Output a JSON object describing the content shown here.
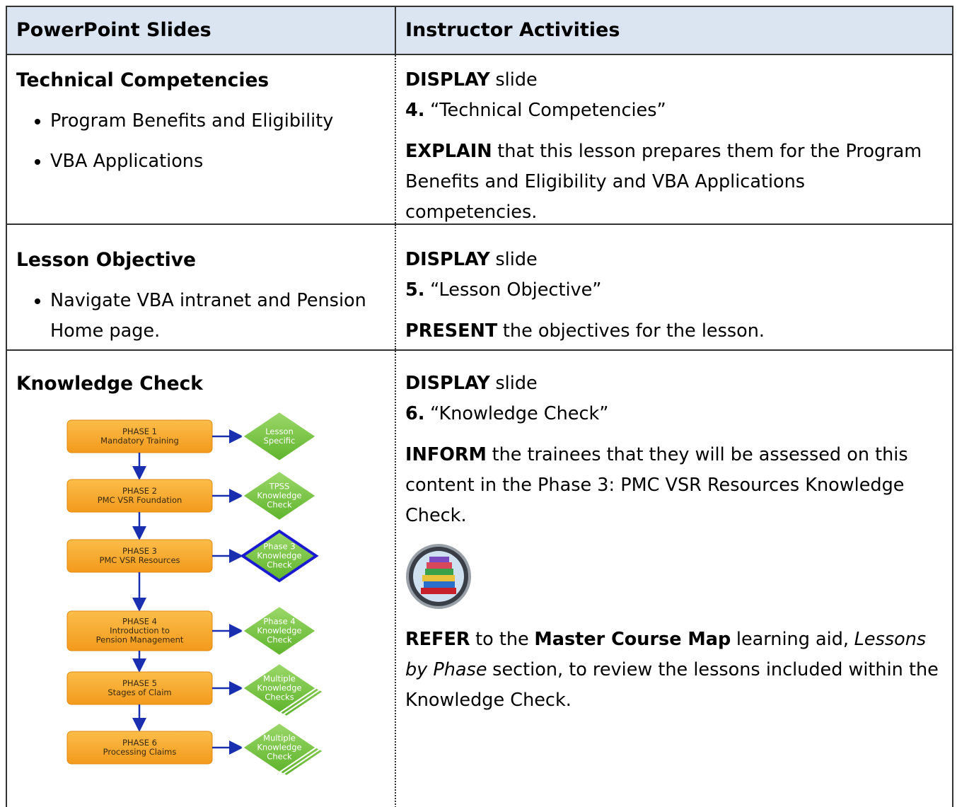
{
  "table": {
    "header": [
      "PowerPoint Slides",
      "Instructor Activities"
    ],
    "rows": [
      {
        "left": {
          "heading": "Technical Competencies",
          "bullets": [
            "Program Benefits and Eligibility",
            "VBA Applications"
          ]
        },
        "right": [
          [
            [
              {
                "text": "DISPLAY",
                "bold": true
              },
              {
                "text": "slide"
              }
            ],
            [
              {
                "text": "4.",
                "bold": true
              },
              {
                "text": "“Technical Competencies”"
              }
            ]
          ],
          [
            [
              {
                "text": "EXPLAIN",
                "bold": true
              },
              {
                "text": "that this lesson prepares them for the Program Benefits and Eligibility and VBA Applications competencies."
              }
            ]
          ]
        ]
      },
      {
        "left": {
          "heading": "Lesson Objective",
          "bullets": [
            "Navigate VBA intranet and Pension Home page."
          ]
        },
        "right": [
          [
            [
              {
                "text": "DISPLAY",
                "bold": true
              },
              {
                "text": "slide"
              }
            ],
            [
              {
                "text": "5.",
                "bold": true
              },
              {
                "text": "“Lesson Objective”"
              }
            ]
          ],
          [
            [
              {
                "text": "PRESENT",
                "bold": true
              },
              {
                "text": "the objectives for the lesson."
              }
            ]
          ]
        ]
      },
      {
        "left": {
          "heading": "Knowledge Check",
          "diagram": {
            "phases": [
              {
                "lines": [
                  "PHASE 1",
                  "Mandatory Training"
                ],
                "check": [
                  "Lesson",
                  "Specific"
                ]
              },
              {
                "lines": [
                  "PHASE 2",
                  "PMC VSR Foundation"
                ],
                "check": [
                  "TPSS",
                  "Knowledge",
                  "Check"
                ]
              },
              {
                "lines": [
                  "PHASE 3",
                  "PMC VSR Resources"
                ],
                "check": [
                  "Phase 3",
                  "Knowledge",
                  "Check"
                ],
                "highlight": true
              },
              {
                "lines": [
                  "PHASE 4",
                  "Introduction to",
                  "Pension Management"
                ],
                "check": [
                  "Phase 4",
                  "Knowledge",
                  "Check"
                ]
              },
              {
                "lines": [
                  "PHASE 5",
                  "Stages of Claim"
                ],
                "check": [
                  "Multiple",
                  "Knowledge",
                  "Checks"
                ],
                "stacked": true
              },
              {
                "lines": [
                  "PHASE 6",
                  "Processing Claims"
                ],
                "check": [
                  "Multiple",
                  "Knowledge",
                  "Check"
                ],
                "stacked": true
              }
            ]
          }
        },
        "right": [
          [
            [
              {
                "text": "DISPLAY",
                "bold": true
              },
              {
                "text": "slide"
              }
            ],
            [
              {
                "text": "6.",
                "bold": true
              },
              {
                "text": "“Knowledge Check”"
              }
            ]
          ],
          [
            [
              {
                "text": "INFORM",
                "bold": true
              },
              {
                "text": "the trainees that they will be assessed on this content in the Phase 3: PMC VSR Resources Knowledge Check."
              }
            ]
          ],
          [
            [
              {
                "text": "REFER",
                "bold": true
              },
              {
                "text": "to the"
              },
              {
                "text": "Master Course Map",
                "bold": true
              },
              {
                "text": "learning aid,"
              },
              {
                "text": "Lessons by Phase",
                "italic": true
              },
              {
                "text": "section, to review the lessons included within the Knowledge Check."
              }
            ]
          ]
        ]
      }
    ]
  }
}
